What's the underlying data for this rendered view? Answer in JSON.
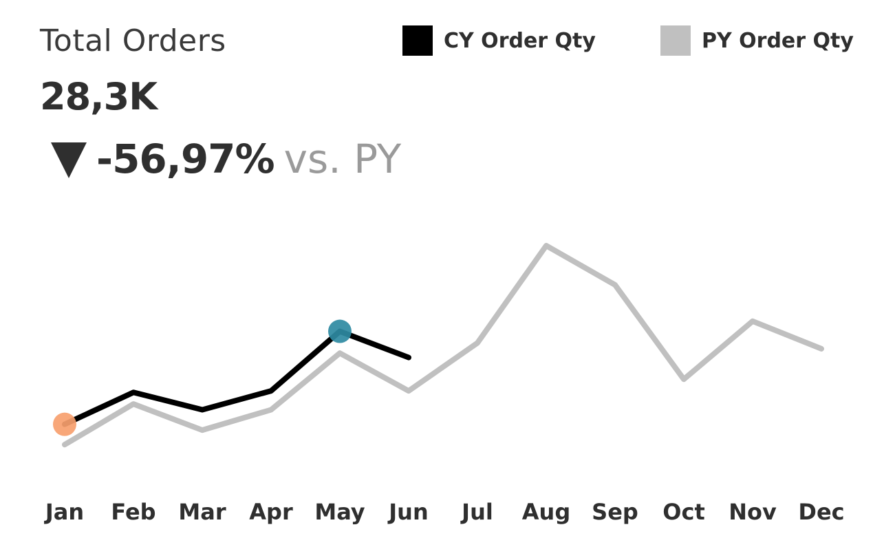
{
  "kpi": {
    "title": "Total Orders",
    "value": "28,3K",
    "change": "-56,97%",
    "change_suffix": "vs. PY",
    "change_direction": "down",
    "arrow_icon": "triangle-down-icon"
  },
  "legend": {
    "cy_label": "CY Order Qty",
    "py_label": "PY  Order Qty"
  },
  "chart_data": {
    "type": "line",
    "categories": [
      "Jan",
      "Feb",
      "Mar",
      "Apr",
      "May",
      "Jun",
      "Jul",
      "Aug",
      "Sep",
      "Oct",
      "Nov",
      "Dec"
    ],
    "series": [
      {
        "name": "CY Order Qty",
        "color": "#000000",
        "values": [
          3.0,
          5.2,
          4.0,
          5.3,
          9.4,
          7.6,
          null,
          null,
          null,
          null,
          null,
          null
        ]
      },
      {
        "name": "PY  Order Qty",
        "color": "#c0c0c0",
        "values": [
          1.6,
          4.4,
          2.6,
          4.0,
          7.9,
          5.3,
          8.6,
          15.3,
          12.6,
          6.1,
          10.1,
          8.2
        ]
      }
    ],
    "markers": [
      {
        "series": 0,
        "index": 0,
        "color": "#f7a06e"
      },
      {
        "series": 0,
        "index": 4,
        "color": "#2e8aa2"
      }
    ],
    "ylim": [
      0,
      18
    ],
    "grid": false
  },
  "colors": {
    "cy": "#000000",
    "py": "#c0c0c0",
    "min_marker": "#f7a06e",
    "max_marker": "#2e8aa2"
  }
}
